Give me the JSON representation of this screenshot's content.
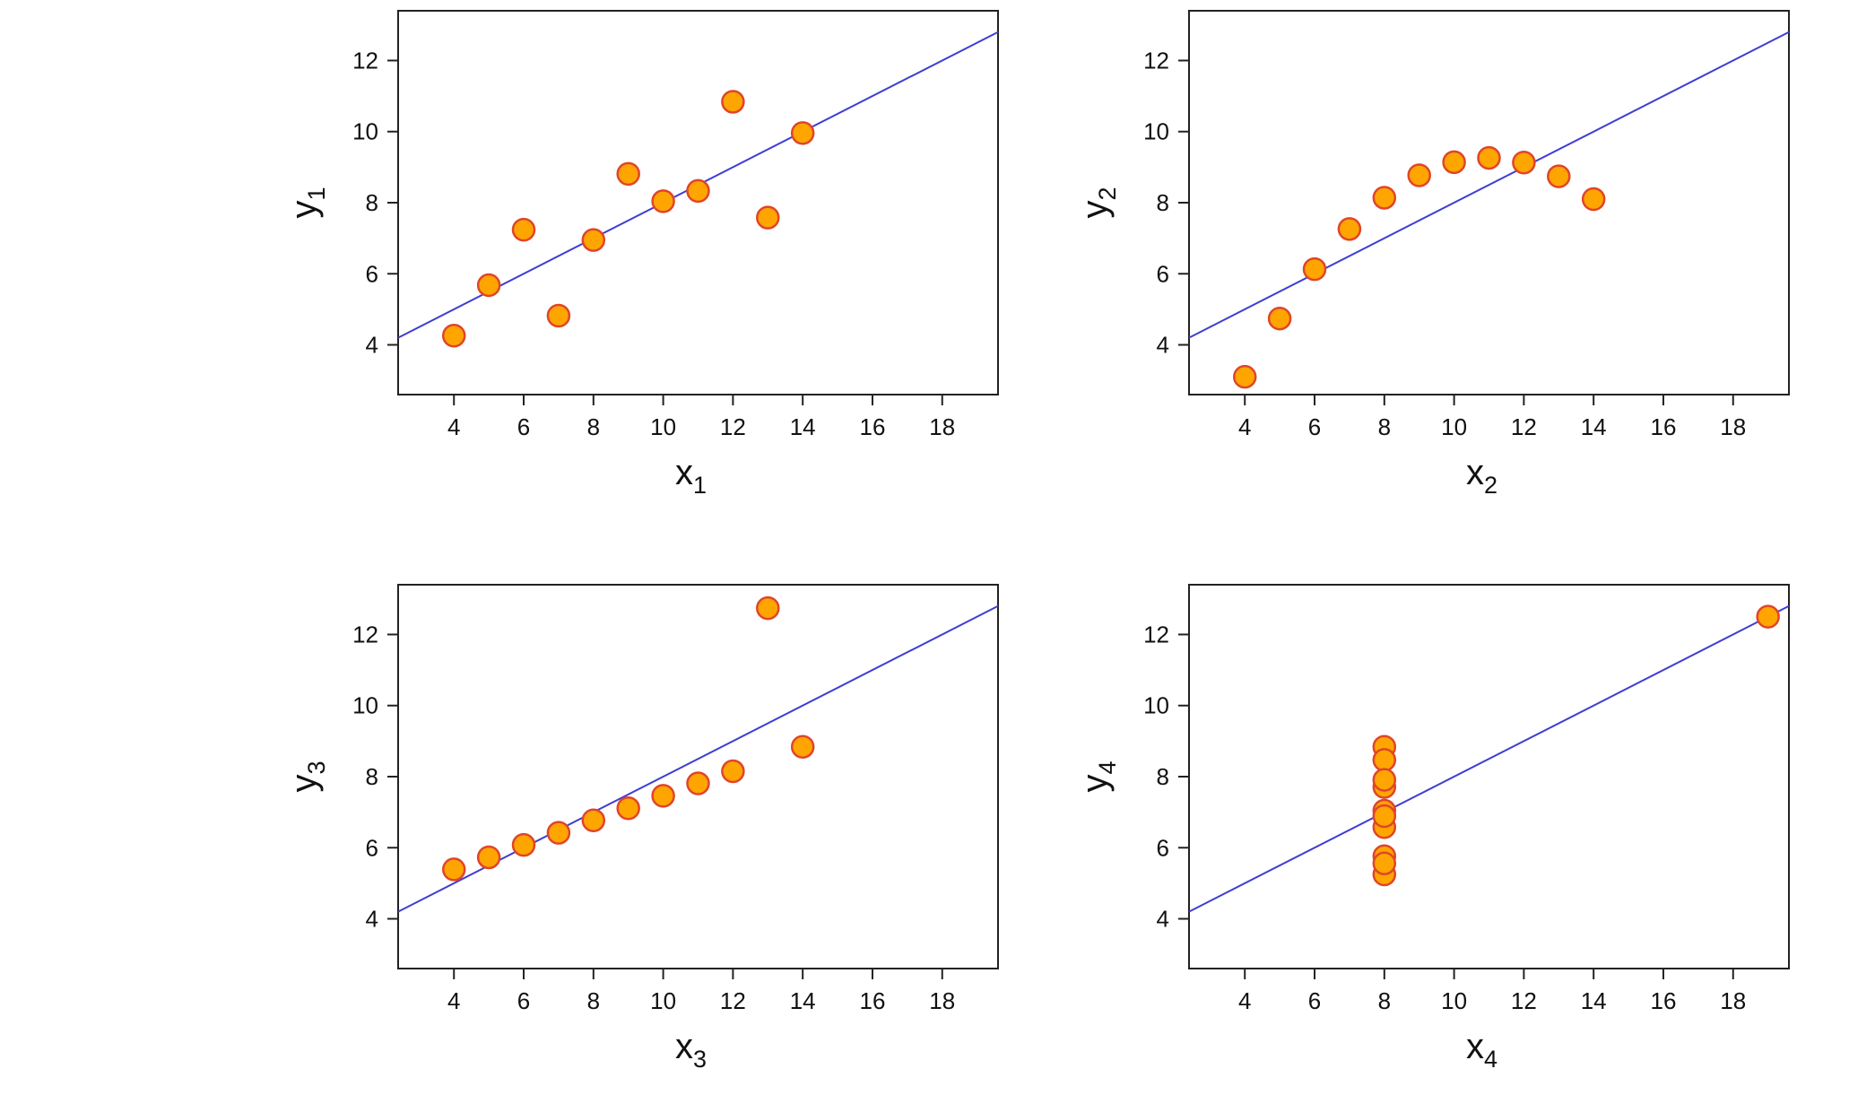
{
  "colors": {
    "point_fill": "#ffa500",
    "point_stroke": "#e0452a",
    "fit_line": "#3e3ed2",
    "axis": "#222222"
  },
  "chart_data": [
    {
      "type": "scatter",
      "xlabel": "x",
      "xlabel_sub": "1",
      "ylabel": "y",
      "ylabel_sub": "1",
      "xlim": [
        2.4,
        19.6
      ],
      "ylim": [
        2.6,
        13.4
      ],
      "xticks": [
        4,
        6,
        8,
        10,
        12,
        14,
        16,
        18
      ],
      "yticks": [
        4,
        6,
        8,
        10,
        12
      ],
      "x": [
        10,
        8,
        13,
        9,
        11,
        14,
        6,
        4,
        12,
        7,
        5
      ],
      "y": [
        8.04,
        6.95,
        7.58,
        8.81,
        8.33,
        9.96,
        7.24,
        4.26,
        10.84,
        4.82,
        5.68
      ],
      "fit_line": {
        "intercept": 3.0,
        "slope": 0.5
      }
    },
    {
      "type": "scatter",
      "xlabel": "x",
      "xlabel_sub": "2",
      "ylabel": "y",
      "ylabel_sub": "2",
      "xlim": [
        2.4,
        19.6
      ],
      "ylim": [
        2.6,
        13.4
      ],
      "xticks": [
        4,
        6,
        8,
        10,
        12,
        14,
        16,
        18
      ],
      "yticks": [
        4,
        6,
        8,
        10,
        12
      ],
      "x": [
        10,
        8,
        13,
        9,
        11,
        14,
        6,
        4,
        12,
        7,
        5
      ],
      "y": [
        9.14,
        8.14,
        8.74,
        8.77,
        9.26,
        8.1,
        6.13,
        3.1,
        9.13,
        7.26,
        4.74
      ],
      "fit_line": {
        "intercept": 3.0,
        "slope": 0.5
      }
    },
    {
      "type": "scatter",
      "xlabel": "x",
      "xlabel_sub": "3",
      "ylabel": "y",
      "ylabel_sub": "3",
      "xlim": [
        2.4,
        19.6
      ],
      "ylim": [
        2.6,
        13.4
      ],
      "xticks": [
        4,
        6,
        8,
        10,
        12,
        14,
        16,
        18
      ],
      "yticks": [
        4,
        6,
        8,
        10,
        12
      ],
      "x": [
        10,
        8,
        13,
        9,
        11,
        14,
        6,
        4,
        12,
        7,
        5
      ],
      "y": [
        7.46,
        6.77,
        12.74,
        7.11,
        7.81,
        8.84,
        6.08,
        5.39,
        8.15,
        6.42,
        5.73
      ],
      "fit_line": {
        "intercept": 3.0,
        "slope": 0.5
      }
    },
    {
      "type": "scatter",
      "xlabel": "x",
      "xlabel_sub": "4",
      "ylabel": "y",
      "ylabel_sub": "4",
      "xlim": [
        2.4,
        19.6
      ],
      "ylim": [
        2.6,
        13.4
      ],
      "xticks": [
        4,
        6,
        8,
        10,
        12,
        14,
        16,
        18
      ],
      "yticks": [
        4,
        6,
        8,
        10,
        12
      ],
      "x": [
        8,
        8,
        8,
        8,
        8,
        8,
        8,
        19,
        8,
        8,
        8
      ],
      "y": [
        6.58,
        5.76,
        7.71,
        8.84,
        8.47,
        7.04,
        5.25,
        12.5,
        5.56,
        7.91,
        6.89
      ],
      "fit_line": {
        "intercept": 3.0,
        "slope": 0.5
      }
    }
  ]
}
